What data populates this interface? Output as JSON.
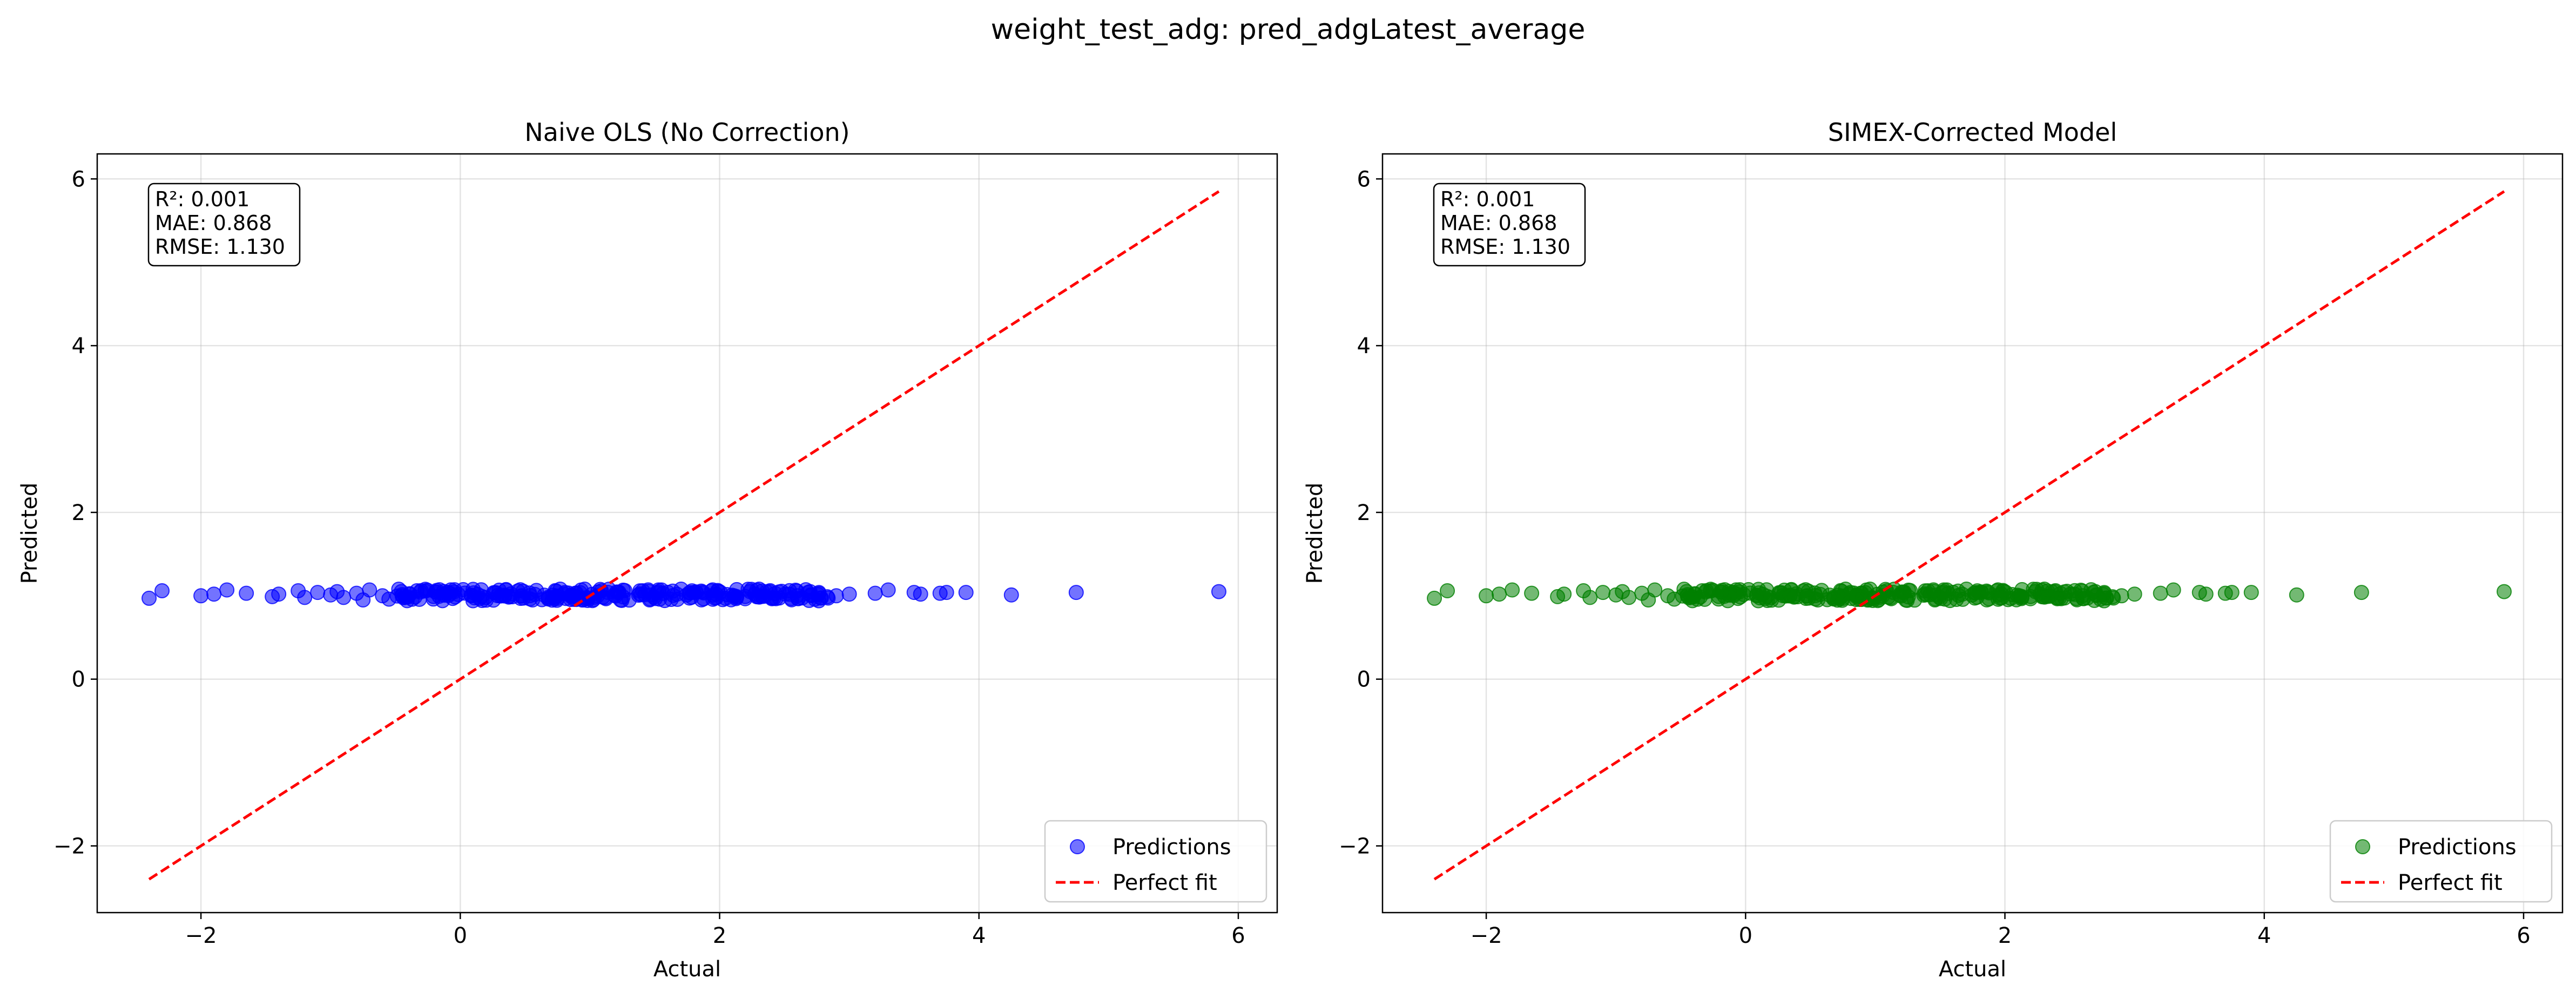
{
  "figure": {
    "suptitle": "weight_test_adg: pred_adgLatest_average"
  },
  "chart_data": [
    {
      "type": "scatter",
      "title": "Naive OLS (No Correction)",
      "xlabel": "Actual",
      "ylabel": "Predicted",
      "xlim": [
        -2.8,
        6.3
      ],
      "ylim": [
        -2.8,
        6.3
      ],
      "xticks": [
        -2,
        0,
        2,
        4,
        6
      ],
      "yticks": [
        -2,
        0,
        2,
        4,
        6
      ],
      "xtick_labels": [
        "−2",
        "0",
        "2",
        "4",
        "6"
      ],
      "ytick_labels": [
        "−2",
        "0",
        "2",
        "4",
        "6"
      ],
      "grid": true,
      "legend_position": "lower-right",
      "stats_box": [
        "R²: 0.001",
        "MAE: 0.868",
        "RMSE: 1.130"
      ],
      "series": [
        {
          "name": "Predictions",
          "kind": "scatter",
          "color": "#0000ff",
          "seed": 7,
          "x": [
            -2.4,
            -2.3,
            -2.0,
            -1.9,
            -1.8,
            -1.65,
            -1.45,
            -1.4,
            -1.25,
            -1.2,
            -1.1,
            -1.0,
            -0.95,
            -0.9,
            -0.8,
            -0.75,
            -0.7,
            -0.6,
            -0.55,
            2.9,
            3.0,
            3.2,
            3.3,
            3.5,
            3.55,
            3.7,
            3.75,
            3.9,
            4.25,
            4.75,
            5.85
          ],
          "y": [
            0.97,
            1.06,
            1.0,
            1.02,
            1.07,
            1.03,
            0.99,
            1.02,
            1.06,
            0.98,
            1.04,
            1.01,
            1.05,
            0.98,
            1.03,
            0.95,
            1.07,
            1.0,
            0.96,
            1.0,
            1.02,
            1.03,
            1.07,
            1.04,
            1.02,
            1.03,
            1.04,
            1.04,
            1.01,
            1.04,
            1.05
          ],
          "dense_cloud": {
            "count": 260,
            "x_range": [
              -0.5,
              2.85
            ],
            "y_range": [
              0.94,
              1.08
            ]
          }
        },
        {
          "name": "Perfect fit",
          "kind": "line",
          "style": "dashed",
          "color": "#ff0000",
          "x": [
            -2.4,
            5.85
          ],
          "y": [
            -2.4,
            5.85
          ]
        }
      ]
    },
    {
      "type": "scatter",
      "title": "SIMEX-Corrected Model",
      "xlabel": "Actual",
      "ylabel": "Predicted",
      "xlim": [
        -2.8,
        6.3
      ],
      "ylim": [
        -2.8,
        6.3
      ],
      "xticks": [
        -2,
        0,
        2,
        4,
        6
      ],
      "yticks": [
        -2,
        0,
        2,
        4,
        6
      ],
      "xtick_labels": [
        "−2",
        "0",
        "2",
        "4",
        "6"
      ],
      "ytick_labels": [
        "−2",
        "0",
        "2",
        "4",
        "6"
      ],
      "grid": true,
      "legend_position": "lower-right",
      "stats_box": [
        "R²: 0.001",
        "MAE: 0.868",
        "RMSE: 1.130"
      ],
      "series": [
        {
          "name": "Predictions",
          "kind": "scatter",
          "color": "#008000",
          "seed": 7,
          "x": [
            -2.4,
            -2.3,
            -2.0,
            -1.9,
            -1.8,
            -1.65,
            -1.45,
            -1.4,
            -1.25,
            -1.2,
            -1.1,
            -1.0,
            -0.95,
            -0.9,
            -0.8,
            -0.75,
            -0.7,
            -0.6,
            -0.55,
            2.9,
            3.0,
            3.2,
            3.3,
            3.5,
            3.55,
            3.7,
            3.75,
            3.9,
            4.25,
            4.75,
            5.85
          ],
          "y": [
            0.97,
            1.06,
            1.0,
            1.02,
            1.07,
            1.03,
            0.99,
            1.02,
            1.06,
            0.98,
            1.04,
            1.01,
            1.05,
            0.98,
            1.03,
            0.95,
            1.07,
            1.0,
            0.96,
            1.0,
            1.02,
            1.03,
            1.07,
            1.04,
            1.02,
            1.03,
            1.04,
            1.04,
            1.01,
            1.04,
            1.05
          ],
          "dense_cloud": {
            "count": 260,
            "x_range": [
              -0.5,
              2.85
            ],
            "y_range": [
              0.94,
              1.08
            ]
          }
        },
        {
          "name": "Perfect fit",
          "kind": "line",
          "style": "dashed",
          "color": "#ff0000",
          "x": [
            -2.4,
            5.85
          ],
          "y": [
            -2.4,
            5.85
          ]
        }
      ]
    }
  ]
}
